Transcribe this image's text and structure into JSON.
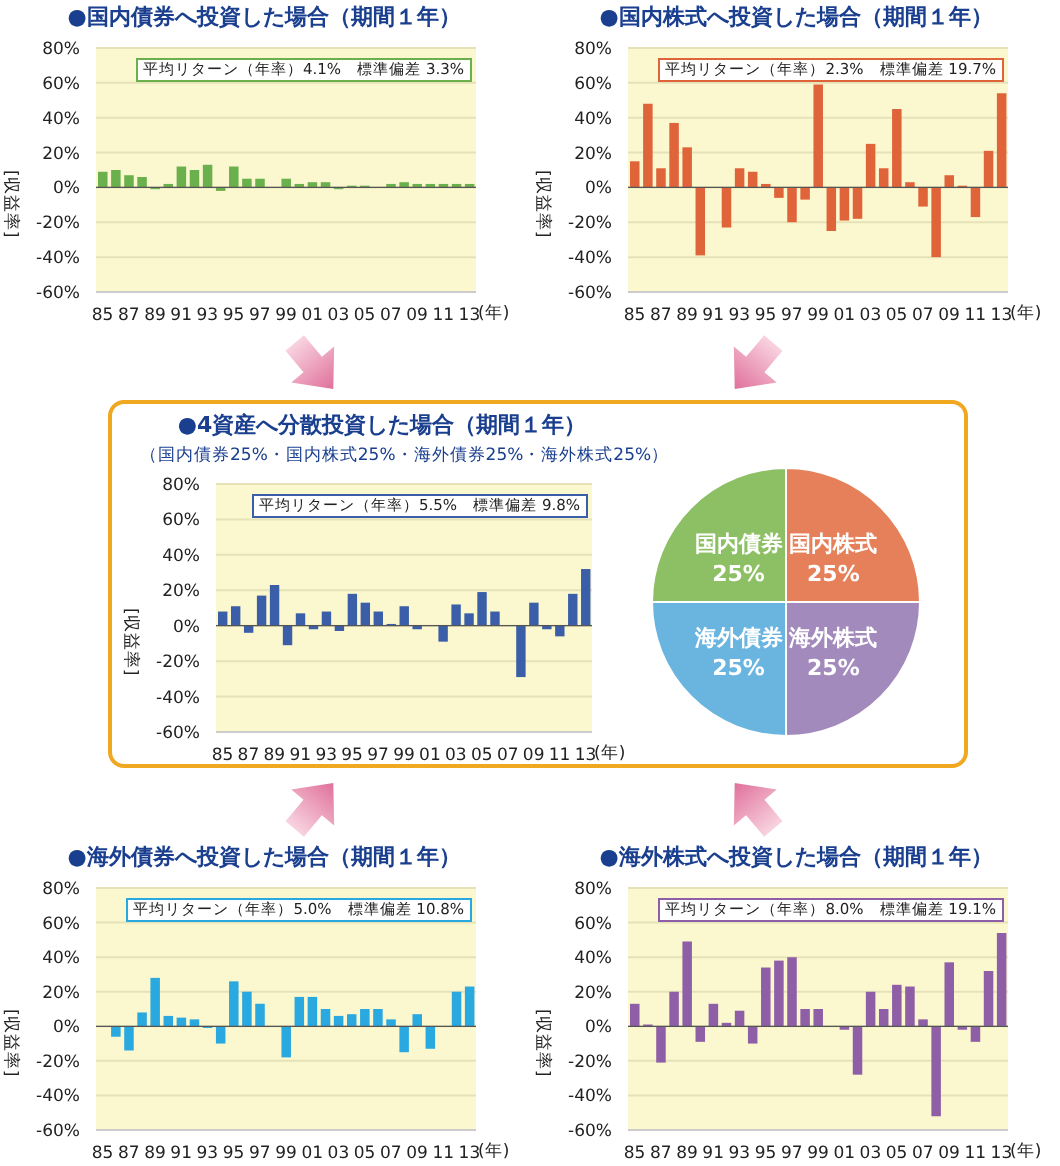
{
  "chart_data": [
    {
      "type": "bar",
      "title": "●国内債券へ投資した場合（期間１年）",
      "ylabel": "[収益率]",
      "xlabel": "(年)",
      "categories": [
        "85",
        null,
        "87",
        null,
        "89",
        null,
        "91",
        null,
        "93",
        null,
        "95",
        null,
        "97",
        null,
        "99",
        null,
        "01",
        null,
        "03",
        null,
        "05",
        null,
        "07",
        null,
        "09",
        null,
        "11",
        null,
        "13"
      ],
      "values": [
        9,
        10,
        7,
        6,
        -1,
        2,
        12,
        10,
        13,
        -2,
        12,
        5,
        5,
        0,
        5,
        2,
        3,
        3,
        -1,
        1,
        1,
        0,
        2,
        3,
        2,
        2,
        2,
        2,
        2
      ],
      "color": "#6ab04c",
      "ylim": [
        -60,
        80
      ],
      "yticks": [
        {
          "value": -60,
          "label": "-60%"
        },
        {
          "value": -40,
          "label": "-40%"
        },
        {
          "value": -20,
          "label": "-20%"
        },
        {
          "value": 0,
          "label": "0%"
        },
        {
          "value": 20,
          "label": "20%"
        },
        {
          "value": 40,
          "label": "40%"
        },
        {
          "value": 60,
          "label": "60%"
        },
        {
          "value": 80,
          "label": "80%"
        }
      ],
      "grid": "y",
      "annotations": [
        "平均リターン（年率）4.1%　標準偏差 3.3%"
      ]
    },
    {
      "type": "bar",
      "title": "●国内株式へ投資した場合（期間１年）",
      "ylabel": "[収益率]",
      "xlabel": "(年)",
      "categories": [
        "85",
        null,
        "87",
        null,
        "89",
        null,
        "91",
        null,
        "93",
        null,
        "95",
        null,
        "97",
        null,
        "99",
        null,
        "01",
        null,
        "03",
        null,
        "05",
        null,
        "07",
        null,
        "09",
        null,
        "11",
        null,
        "13"
      ],
      "values": [
        15,
        48,
        11,
        37,
        23,
        -39,
        0,
        -23,
        11,
        9,
        2,
        -6,
        -20,
        -7,
        59,
        -25,
        -19,
        -18,
        25,
        11,
        45,
        3,
        -11,
        -40,
        7,
        1,
        -17,
        21,
        54
      ],
      "color": "#e0643a",
      "ylim": [
        -60,
        80
      ],
      "yticks": [
        {
          "value": -60,
          "label": "-60%"
        },
        {
          "value": -40,
          "label": "-40%"
        },
        {
          "value": -20,
          "label": "-20%"
        },
        {
          "value": 0,
          "label": "0%"
        },
        {
          "value": 20,
          "label": "20%"
        },
        {
          "value": 40,
          "label": "40%"
        },
        {
          "value": 60,
          "label": "60%"
        },
        {
          "value": 80,
          "label": "80%"
        }
      ],
      "grid": "y",
      "annotations": [
        "平均リターン（年率）2.3%　標準偏差 19.7%"
      ]
    },
    {
      "type": "bar",
      "title": "●4資産へ分散投資した場合（期間１年）",
      "subtitle": "（国内債券25%・国内株式25%・海外債券25%・海外株式25%）",
      "ylabel": "[収益率]",
      "xlabel": "(年)",
      "categories": [
        "85",
        null,
        "87",
        null,
        "89",
        null,
        "91",
        null,
        "93",
        null,
        "95",
        null,
        "97",
        null,
        "99",
        null,
        "01",
        null,
        "03",
        null,
        "05",
        null,
        "07",
        null,
        "09",
        null,
        "11",
        null,
        "13"
      ],
      "values": [
        8,
        11,
        -4,
        17,
        23,
        -11,
        7,
        -2,
        8,
        -3,
        18,
        13,
        8,
        1,
        11,
        -2,
        0,
        -9,
        12,
        7,
        19,
        8,
        0,
        -29,
        13,
        -2,
        -6,
        18,
        32
      ],
      "color": "#3a5ea8",
      "ylim": [
        -60,
        80
      ],
      "yticks": [
        {
          "value": -60,
          "label": "-60%"
        },
        {
          "value": -40,
          "label": "-40%"
        },
        {
          "value": -20,
          "label": "-20%"
        },
        {
          "value": 0,
          "label": "0%"
        },
        {
          "value": 20,
          "label": "20%"
        },
        {
          "value": 40,
          "label": "40%"
        },
        {
          "value": 60,
          "label": "60%"
        },
        {
          "value": 80,
          "label": "80%"
        }
      ],
      "grid": "y",
      "annotations": [
        "平均リターン（年率）5.5%　標準偏差 9.8%"
      ]
    },
    {
      "type": "pie",
      "categories": [
        "国内株式",
        "海外株式",
        "海外債券",
        "国内債券"
      ],
      "values": [
        25,
        25,
        25,
        25
      ],
      "colors": [
        "#e5805a",
        "#a28abd",
        "#6ab4e0",
        "#8dc064"
      ],
      "value_labels": [
        "25%",
        "25%",
        "25%",
        "25%"
      ]
    },
    {
      "type": "bar",
      "title": "●海外債券へ投資した場合（期間１年）",
      "ylabel": "[収益率]",
      "xlabel": "(年)",
      "categories": [
        "85",
        null,
        "87",
        null,
        "89",
        null,
        "91",
        null,
        "93",
        null,
        "95",
        null,
        "97",
        null,
        "99",
        null,
        "01",
        null,
        "03",
        null,
        "05",
        null,
        "07",
        null,
        "09",
        null,
        "11",
        null,
        "13"
      ],
      "values": [
        0,
        -6,
        -14,
        8,
        28,
        6,
        5,
        4,
        -1,
        -10,
        26,
        20,
        13,
        0,
        -18,
        17,
        17,
        10,
        6,
        7,
        10,
        10,
        4,
        -15,
        7,
        -13,
        0,
        20,
        23
      ],
      "color": "#2aa8e0",
      "ylim": [
        -60,
        80
      ],
      "yticks": [
        {
          "value": -60,
          "label": "-60%"
        },
        {
          "value": -40,
          "label": "-40%"
        },
        {
          "value": -20,
          "label": "-20%"
        },
        {
          "value": 0,
          "label": "0%"
        },
        {
          "value": 20,
          "label": "20%"
        },
        {
          "value": 40,
          "label": "40%"
        },
        {
          "value": 60,
          "label": "60%"
        },
        {
          "value": 80,
          "label": "80%"
        }
      ],
      "grid": "y",
      "annotations": [
        "平均リターン（年率）5.0%　標準偏差 10.8%"
      ]
    },
    {
      "type": "bar",
      "title": "●海外株式へ投資した場合（期間１年）",
      "ylabel": "[収益率]",
      "xlabel": "(年)",
      "categories": [
        "85",
        null,
        "87",
        null,
        "89",
        null,
        "91",
        null,
        "93",
        null,
        "95",
        null,
        "97",
        null,
        "99",
        null,
        "01",
        null,
        "03",
        null,
        "05",
        null,
        "07",
        null,
        "09",
        null,
        "11",
        null,
        "13"
      ],
      "values": [
        13,
        1,
        -21,
        20,
        49,
        -9,
        13,
        2,
        9,
        -10,
        34,
        38,
        40,
        10,
        10,
        0,
        -2,
        -28,
        20,
        10,
        24,
        23,
        4,
        -52,
        37,
        -2,
        -9,
        32,
        54
      ],
      "color": "#8e5fa6",
      "ylim": [
        -60,
        80
      ],
      "yticks": [
        {
          "value": -60,
          "label": "-60%"
        },
        {
          "value": -40,
          "label": "-40%"
        },
        {
          "value": -20,
          "label": "-20%"
        },
        {
          "value": 0,
          "label": "0%"
        },
        {
          "value": 20,
          "label": "20%"
        },
        {
          "value": 40,
          "label": "40%"
        },
        {
          "value": 60,
          "label": "60%"
        },
        {
          "value": 80,
          "label": "80%"
        }
      ],
      "grid": "y",
      "annotations": [
        "平均リターン（年率）8.0%　標準偏差 19.1%"
      ]
    }
  ]
}
